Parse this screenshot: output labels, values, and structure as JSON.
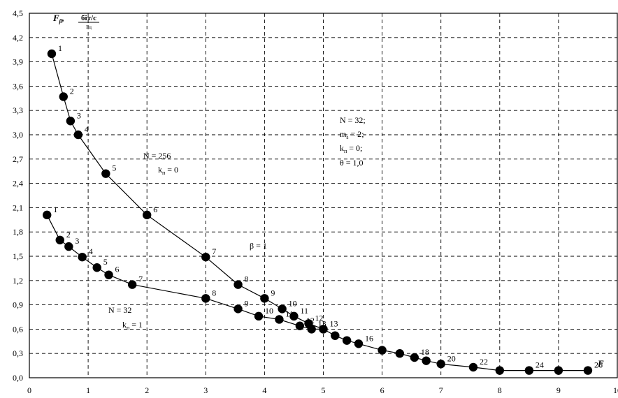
{
  "chart_data": {
    "type": "line",
    "title": "",
    "ylabel": "F_β,  біт/с / Гц",
    "ylabel_symbol": "F",
    "ylabel_subscript": "β",
    "ylabel_unit_num": "біт/с",
    "ylabel_unit_den": "Гц",
    "xlabel": "F",
    "xlim": [
      0,
      10
    ],
    "ylim": [
      0,
      4.5
    ],
    "x_ticks": [
      "0",
      "1",
      "2",
      "3",
      "4",
      "5",
      "6",
      "7",
      "8",
      "9",
      "10"
    ],
    "y_ticks": [
      "0,0",
      "0,3",
      "0,6",
      "0,9",
      "1,2",
      "1,5",
      "1,8",
      "2,1",
      "2,4",
      "2,7",
      "3,0",
      "3,3",
      "3,6",
      "3,9",
      "4,2",
      "4,5"
    ],
    "grid": true,
    "series": [
      {
        "points": [
          {
            "x": 0.38,
            "y": 4.0,
            "label": "1"
          },
          {
            "x": 0.58,
            "y": 3.47,
            "label": "2"
          },
          {
            "x": 0.7,
            "y": 3.17,
            "label": "3"
          },
          {
            "x": 0.83,
            "y": 3.0,
            "label": "4"
          },
          {
            "x": 1.3,
            "y": 2.52,
            "label": "5"
          },
          {
            "x": 2.0,
            "y": 2.01,
            "label": "6"
          },
          {
            "x": 3.0,
            "y": 1.49,
            "label": "7"
          },
          {
            "x": 3.55,
            "y": 1.15,
            "label": "8"
          },
          {
            "x": 4.0,
            "y": 0.98,
            "label": "9"
          },
          {
            "x": 4.3,
            "y": 0.85,
            "label": "10"
          },
          {
            "x": 4.5,
            "y": 0.76,
            "label": "11"
          },
          {
            "x": 4.75,
            "y": 0.67,
            "label": "12"
          },
          {
            "x": 5.0,
            "y": 0.6,
            "label": "13"
          },
          {
            "x": 5.2,
            "y": 0.52,
            "label": ""
          },
          {
            "x": 5.4,
            "y": 0.46,
            "label": ""
          },
          {
            "x": 5.6,
            "y": 0.42,
            "label": "16"
          },
          {
            "x": 6.0,
            "y": 0.34,
            "label": ""
          },
          {
            "x": 6.3,
            "y": 0.3,
            "label": ""
          },
          {
            "x": 6.55,
            "y": 0.25,
            "label": "18"
          },
          {
            "x": 6.75,
            "y": 0.21,
            "label": ""
          },
          {
            "x": 7.0,
            "y": 0.17,
            "label": "20"
          },
          {
            "x": 7.55,
            "y": 0.13,
            "label": "22"
          },
          {
            "x": 8.0,
            "y": 0.09,
            "label": ""
          },
          {
            "x": 8.5,
            "y": 0.09,
            "label": "24"
          },
          {
            "x": 9.0,
            "y": 0.09,
            "label": ""
          },
          {
            "x": 9.5,
            "y": 0.09,
            "label": "26"
          }
        ]
      },
      {
        "points": [
          {
            "x": 0.3,
            "y": 2.01,
            "label": "1"
          },
          {
            "x": 0.52,
            "y": 1.7,
            "label": "2"
          },
          {
            "x": 0.67,
            "y": 1.62,
            "label": "3"
          },
          {
            "x": 0.9,
            "y": 1.49,
            "label": "4"
          },
          {
            "x": 1.15,
            "y": 1.36,
            "label": "5"
          },
          {
            "x": 1.35,
            "y": 1.27,
            "label": "6"
          },
          {
            "x": 1.75,
            "y": 1.15,
            "label": "7"
          },
          {
            "x": 3.0,
            "y": 0.98,
            "label": "8"
          },
          {
            "x": 3.55,
            "y": 0.85,
            "label": "9"
          },
          {
            "x": 3.9,
            "y": 0.76,
            "label": "10"
          },
          {
            "x": 4.25,
            "y": 0.72,
            "label": "11"
          },
          {
            "x": 4.6,
            "y": 0.64,
            "label": "12"
          },
          {
            "x": 4.8,
            "y": 0.6,
            "label": "13"
          },
          {
            "x": 5.0,
            "y": 0.6,
            "label": ""
          }
        ]
      }
    ],
    "annotations": {
      "upper_curve": {
        "line1": "N = 256",
        "line2_main": "k",
        "line2_sub": "п",
        "line2_rest": " = 0"
      },
      "lower_curve": {
        "line1": "N = 32",
        "line2_main": "k",
        "line2_sub": "п",
        "line2_rest": " = 1"
      },
      "beta": "β = 1",
      "params": {
        "line1": "N = 32;",
        "line2_main": "m",
        "line2_sub": "s",
        "line2_rest": " = 2;",
        "line3_main": "k",
        "line3_sub": "п",
        "line3_rest": " = 0;",
        "line4": "θ = 1,0"
      }
    }
  }
}
